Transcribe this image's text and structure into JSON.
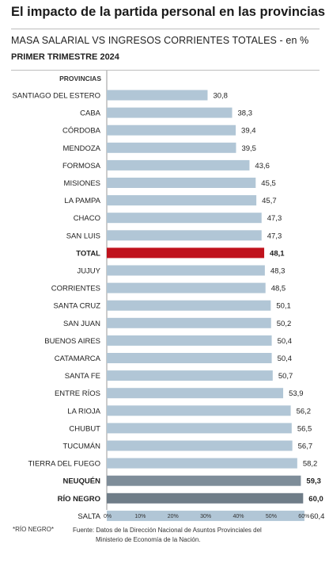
{
  "header": {
    "title": "El impacto de la partida personal en las provincias",
    "subtitle": "MASA SALARIAL VS INGRESOS CORRIENTES TOTALES - en %",
    "period": "PRIMER TRIMESTRE 2024"
  },
  "column_header": "PROVINCIAS",
  "footnote": "*RÍO NEGRO*",
  "source": {
    "line1": "Fuente: Datos de la Dirección Nacional de Asuntos Provinciales del",
    "line2": "Ministerio de Economía de la Nación."
  },
  "colors": {
    "default": "#b1c6d6",
    "total": "#c0121c",
    "highlight_dark": "#7e8d99",
    "highlight_darker": "#6f7d88"
  },
  "chart_data": {
    "type": "bar",
    "orientation": "horizontal",
    "categories": [
      "SANTIAGO DEL ESTERO",
      "CABA",
      "CÓRDOBA",
      "MENDOZA",
      "FORMOSA",
      "MISIONES",
      "LA PAMPA",
      "CHACO",
      "SAN LUIS",
      "TOTAL",
      "JUJUY",
      "CORRIENTES",
      "SANTA CRUZ",
      "SAN JUAN",
      "BUENOS AIRES",
      "CATAMARCA",
      "SANTA FE",
      "ENTRE RÍOS",
      "LA RIOJA",
      "CHUBUT",
      "TUCUMÁN",
      "TIERRA DEL FUEGO",
      "NEUQUÉN",
      "RÍO NEGRO",
      "SALTA"
    ],
    "values": [
      30.8,
      38.3,
      39.4,
      39.5,
      43.6,
      45.5,
      45.7,
      47.3,
      47.3,
      48.1,
      48.3,
      48.5,
      50.1,
      50.2,
      50.4,
      50.4,
      50.7,
      53.9,
      56.2,
      56.5,
      56.7,
      58.2,
      59.3,
      60.0,
      60.4
    ],
    "value_labels": [
      "30,8",
      "38,3",
      "39,4",
      "39,5",
      "43,6",
      "45,5",
      "45,7",
      "47,3",
      "47,3",
      "48,1",
      "48,3",
      "48,5",
      "50,1",
      "50,2",
      "50,4",
      "50,4",
      "50,7",
      "53,9",
      "56,2",
      "56,5",
      "56,7",
      "58,2",
      "59,3",
      "60,0",
      "60,4"
    ],
    "highlight": {
      "TOTAL": "total",
      "NEUQUÉN": "highlight_dark",
      "RÍO NEGRO": "highlight_darker"
    },
    "xlim": [
      0,
      65
    ],
    "xticks": [
      0,
      10,
      20,
      30,
      40,
      50,
      60
    ],
    "xtick_labels": [
      "0%",
      "10%",
      "20%",
      "30%",
      "40%",
      "50%",
      "60%"
    ],
    "grid": false
  }
}
